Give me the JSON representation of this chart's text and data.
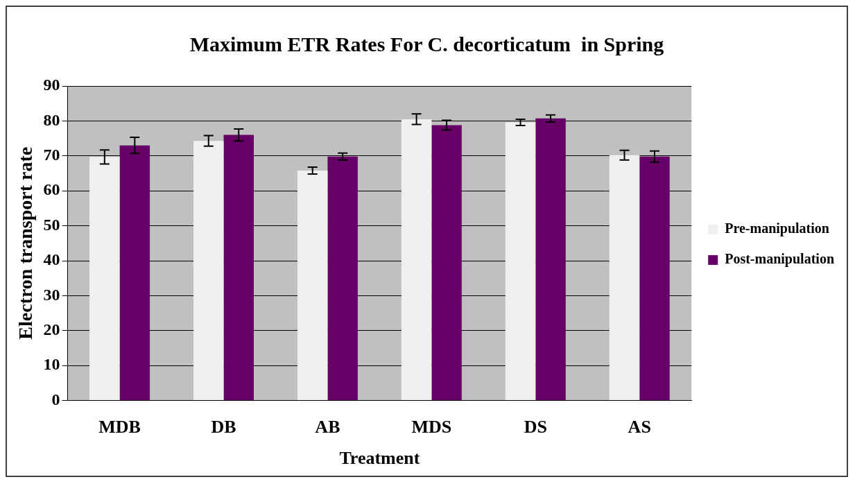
{
  "chart_data": {
    "type": "bar",
    "title": "Maximum ETR Rates For C. decorticatum  in Spring",
    "xlabel": "Treatment",
    "ylabel": "Electron transport rate",
    "categories": [
      "MDB",
      "DB",
      "AB",
      "MDS",
      "DS",
      "AS"
    ],
    "series": [
      {
        "name": "Pre-manipulation",
        "color": "#f0f0f0",
        "values": [
          69.7,
          74.3,
          65.8,
          80.5,
          79.6,
          70.2
        ],
        "errors": [
          2,
          1.5,
          1,
          1.5,
          0.9,
          1.4
        ]
      },
      {
        "name": "Post-manipulation",
        "color": "#660066",
        "values": [
          73,
          76,
          69.8,
          78.8,
          80.7,
          69.8
        ],
        "errors": [
          2.3,
          1.7,
          1,
          1.4,
          1,
          1.6
        ]
      }
    ],
    "ylim": [
      0,
      90
    ],
    "yticks": [
      0,
      10,
      20,
      30,
      40,
      50,
      60,
      70,
      80,
      90
    ],
    "grid": "y",
    "legend": "right"
  }
}
